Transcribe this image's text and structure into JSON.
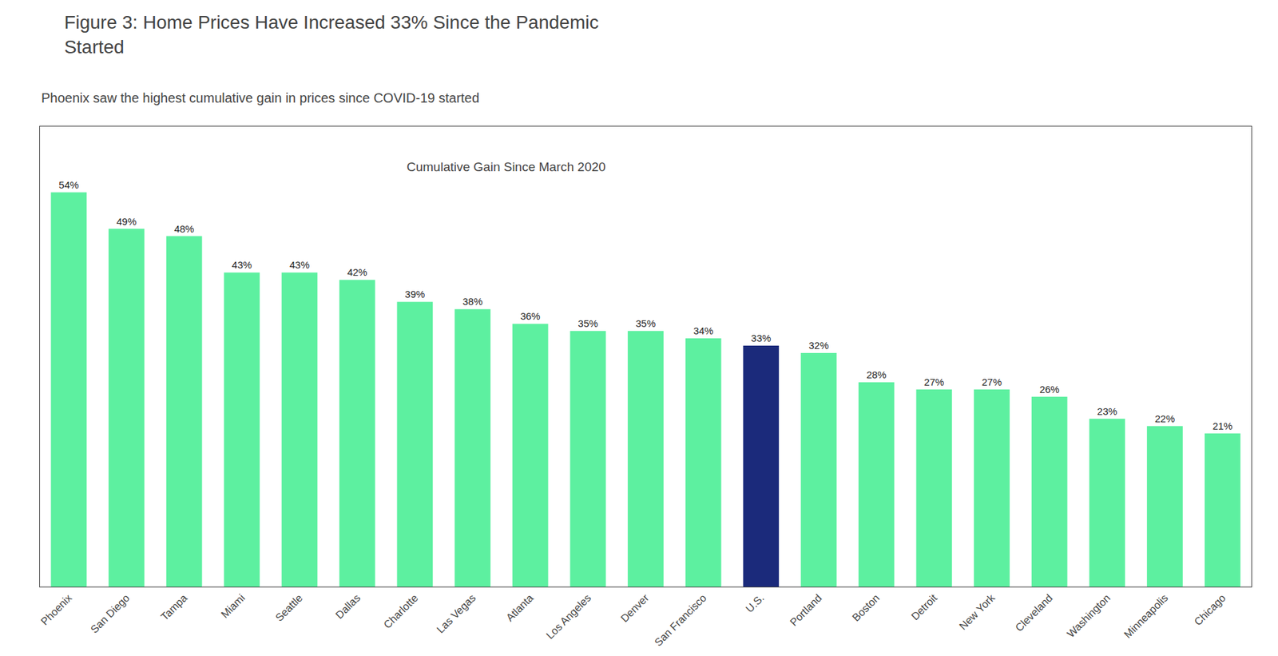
{
  "chart_data": {
    "type": "bar",
    "title": "Figure 3: Home Prices Have Increased 33% Since the Pandemic\nStarted",
    "subtitle": "Phoenix saw the highest cumulative gain in prices since COVID-19 started",
    "annotation": "Cumulative Gain Since March 2020",
    "categories": [
      "Phoenix",
      "San Diego",
      "Tampa",
      "Miami",
      "Seattle",
      "Dallas",
      "Charlotte",
      "Las Vegas",
      "Atlanta",
      "Los Angeles",
      "Denver",
      "San Francisco",
      "U.S.",
      "Portland",
      "Boston",
      "Detroit",
      "New York",
      "Cleveland",
      "Washington",
      "Minneapolis",
      "Chicago"
    ],
    "values": [
      54,
      49,
      48,
      43,
      43,
      42,
      39,
      38,
      36,
      35,
      35,
      34,
      33,
      32,
      28,
      27,
      27,
      26,
      23,
      22,
      21
    ],
    "value_labels": [
      "54%",
      "49%",
      "48%",
      "43%",
      "43%",
      "42%",
      "39%",
      "38%",
      "36%",
      "35%",
      "35%",
      "34%",
      "33%",
      "32%",
      "28%",
      "27%",
      "27%",
      "26%",
      "23%",
      "22%",
      "21%"
    ],
    "colors": [
      "#5DF0A0",
      "#5DF0A0",
      "#5DF0A0",
      "#5DF0A0",
      "#5DF0A0",
      "#5DF0A0",
      "#5DF0A0",
      "#5DF0A0",
      "#5DF0A0",
      "#5DF0A0",
      "#5DF0A0",
      "#5DF0A0",
      "#1B2A7B",
      "#5DF0A0",
      "#5DF0A0",
      "#5DF0A0",
      "#5DF0A0",
      "#5DF0A0",
      "#5DF0A0",
      "#5DF0A0",
      "#5DF0A0"
    ],
    "ylim": [
      0,
      63
    ],
    "data_labels": true,
    "tick_labels": "x",
    "grid": false
  }
}
